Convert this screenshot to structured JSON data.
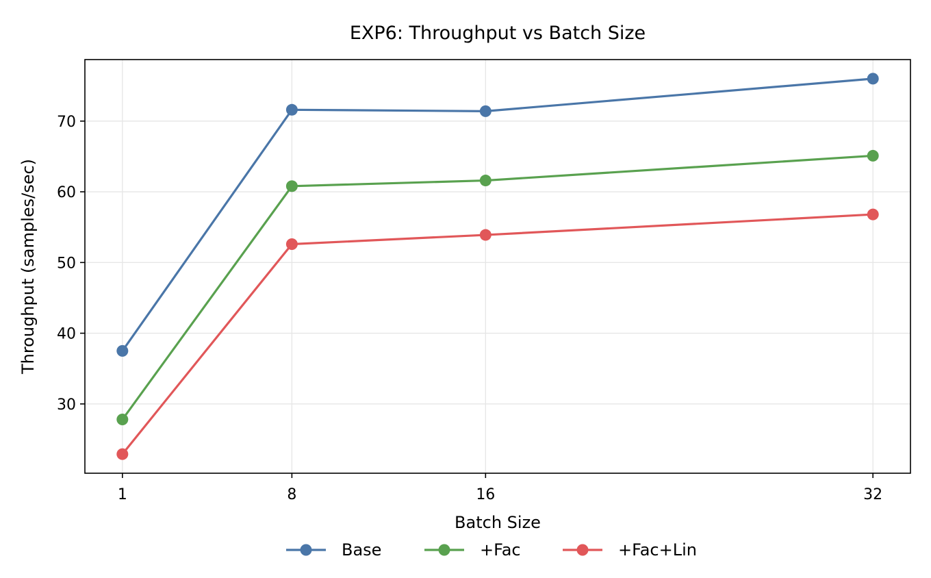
{
  "chart_data": {
    "type": "line",
    "title": "EXP6: Throughput vs Batch Size",
    "xlabel": "Batch Size",
    "ylabel": "Throughput (samples/sec)",
    "x": [
      1,
      8,
      16,
      32
    ],
    "x_tick_labels": [
      "1",
      "8",
      "16",
      "32"
    ],
    "x_scale": "linear",
    "xlim": [
      -0.55,
      33.55
    ],
    "y_ticks": [
      30,
      40,
      50,
      60,
      70
    ],
    "y_tick_labels": [
      "30",
      "40",
      "50",
      "60",
      "70"
    ],
    "ylim": [
      20.2,
      78.7
    ],
    "grid": true,
    "legend_position": "bottom-center",
    "series": [
      {
        "name": "Base",
        "color": "#4a76a8",
        "marker": "circle",
        "values": [
          37.5,
          71.6,
          71.4,
          76.0
        ]
      },
      {
        "name": "+Fac",
        "color": "#59a14f",
        "marker": "circle",
        "values": [
          27.8,
          60.8,
          61.6,
          65.1
        ]
      },
      {
        "name": "+Fac+Lin",
        "color": "#e15759",
        "marker": "circle",
        "values": [
          22.9,
          52.6,
          53.9,
          56.8
        ]
      }
    ]
  }
}
